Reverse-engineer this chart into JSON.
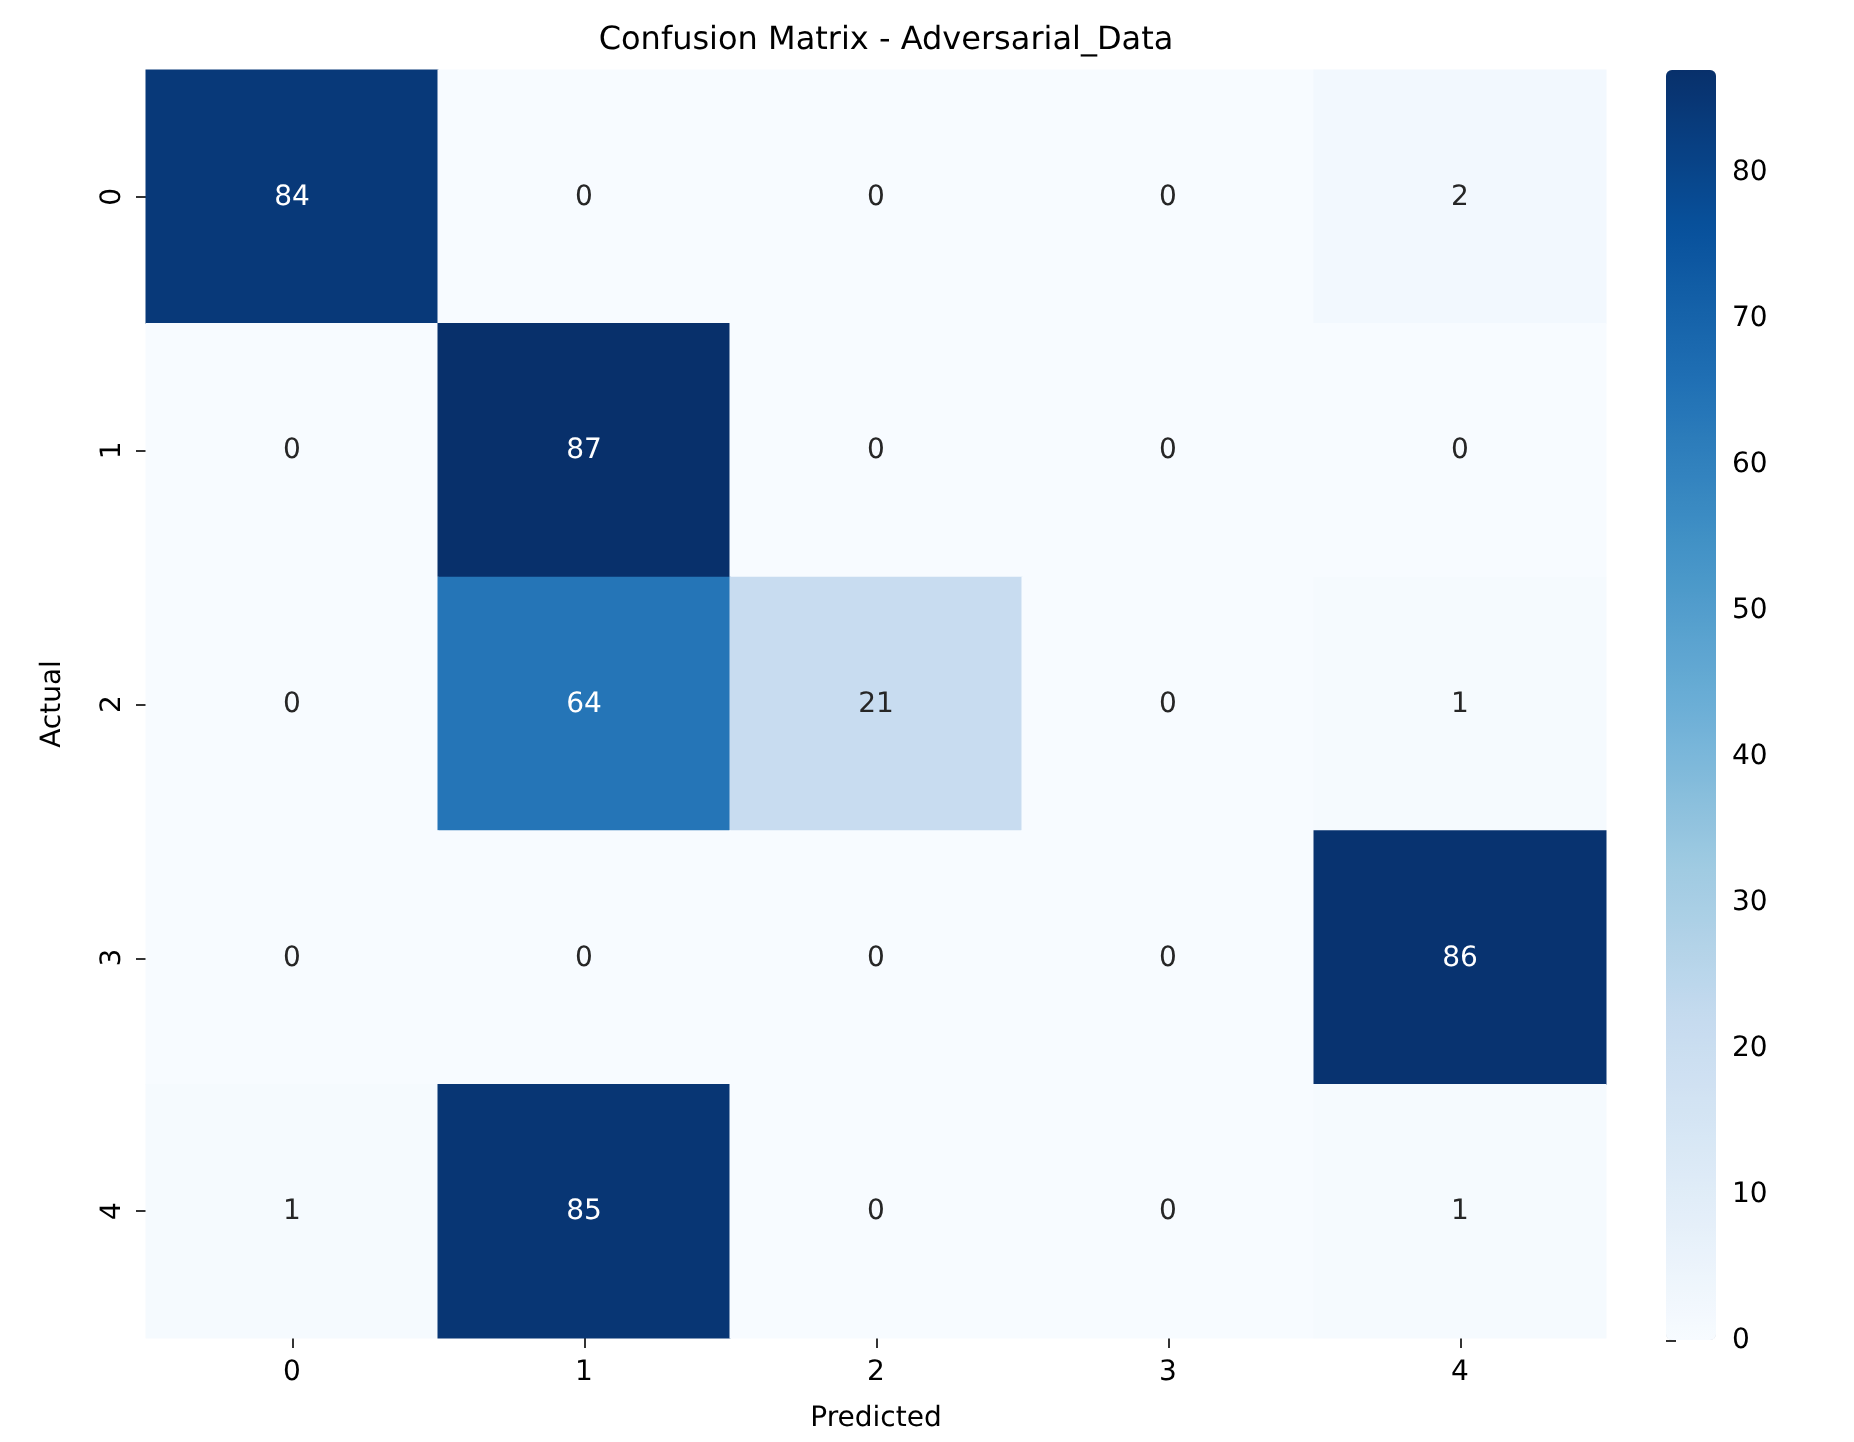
{
  "chart_data": {
    "type": "heatmap",
    "title": "Confusion Matrix - Adversarial_Data",
    "xlabel": "Predicted",
    "ylabel": "Actual",
    "categories": [
      "0",
      "1",
      "2",
      "3",
      "4"
    ],
    "y_categories": [
      "0",
      "1",
      "2",
      "3",
      "4"
    ],
    "cells": [
      [
        84,
        0,
        0,
        0,
        2
      ],
      [
        0,
        87,
        0,
        0,
        0
      ],
      [
        0,
        64,
        21,
        0,
        1
      ],
      [
        0,
        0,
        0,
        0,
        86
      ],
      [
        1,
        85,
        0,
        0,
        1
      ]
    ],
    "data_labels": true,
    "clim": [
      0,
      87
    ],
    "cticks": [
      0,
      10,
      20,
      30,
      40,
      50,
      60,
      70,
      80
    ]
  }
}
